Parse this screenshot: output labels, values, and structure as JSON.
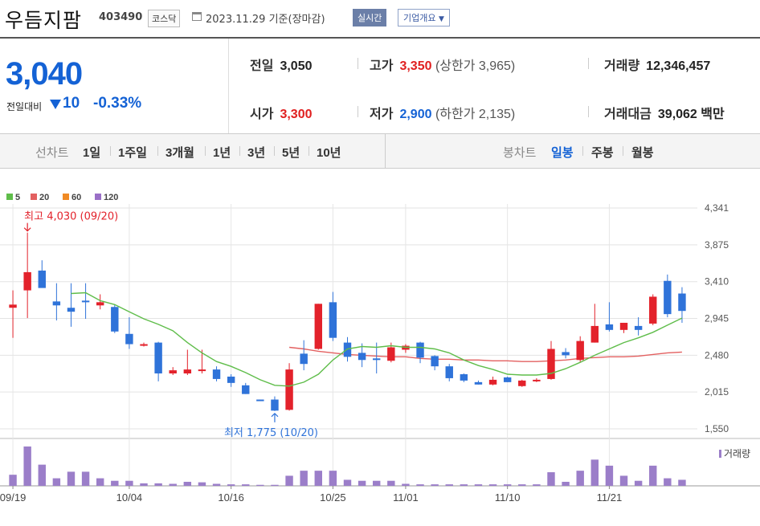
{
  "header": {
    "name": "우듬지팜",
    "code": "403490",
    "market": "코스닥",
    "date": "2023.11.29",
    "basis": "기준(장마감)",
    "realtime_label": "실시간",
    "overview_label": "기업개요"
  },
  "price": {
    "current": "3,040",
    "prev_label": "전일대비",
    "change": "10",
    "change_pct": "-0.33%",
    "direction": "down"
  },
  "stats": {
    "prev_close": {
      "label": "전일",
      "value": "3,050"
    },
    "high": {
      "label": "고가",
      "value": "3,350",
      "sub": "(상한가 3,965)"
    },
    "volume": {
      "label": "거래량",
      "value": "12,346,457"
    },
    "open": {
      "label": "시가",
      "value": "3,300"
    },
    "low": {
      "label": "저가",
      "value": "2,900",
      "sub": "(하한가 2,135)"
    },
    "amount": {
      "label": "거래대금",
      "value": "39,062",
      "unit": "백만"
    }
  },
  "period_tabs": {
    "label": "선차트",
    "items": [
      "1일",
      "1주일",
      "3개월",
      "1년",
      "3년",
      "5년",
      "10년"
    ]
  },
  "candle_tabs": {
    "label": "봉차트",
    "items": [
      "일봉",
      "주봉",
      "월봉"
    ],
    "active": "일봉"
  },
  "colors": {
    "up": "#e3222b",
    "down": "#2f73d9",
    "ma5": "#5fbd4a",
    "ma20": "#e36060",
    "ma60": "#f08a24",
    "ma120": "#9a6fc7",
    "accent": "#1462d5"
  },
  "chart_data": {
    "type": "candlestick",
    "legend": [
      "5",
      "20",
      "60",
      "120"
    ],
    "y_ticks": [
      "4,341",
      "3,875",
      "3,410",
      "2,945",
      "2,480",
      "2,015",
      "1,550"
    ],
    "ylim": [
      1550,
      4341
    ],
    "x_tick_labels": [
      {
        "index": 0,
        "label": "09/19"
      },
      {
        "index": 8,
        "label": "10/04"
      },
      {
        "index": 15,
        "label": "10/16"
      },
      {
        "index": 22,
        "label": "10/25"
      },
      {
        "index": 27,
        "label": "11/01"
      },
      {
        "index": 34,
        "label": "11/10"
      },
      {
        "index": 41,
        "label": "11/21"
      }
    ],
    "annotations": {
      "high": {
        "label": "최고 4,030 (09/20)",
        "index": 1,
        "value": 4030
      },
      "low": {
        "label": "최저 1,775 (10/20)",
        "index": 18,
        "value": 1775
      }
    },
    "volume_label": "거래량",
    "candles": [
      {
        "o": 3080,
        "h": 3300,
        "l": 2700,
        "c": 3120
      },
      {
        "o": 3300,
        "h": 4030,
        "l": 2950,
        "c": 3530
      },
      {
        "o": 3550,
        "h": 3680,
        "l": 3340,
        "c": 3330
      },
      {
        "o": 3160,
        "h": 3390,
        "l": 2920,
        "c": 3110
      },
      {
        "o": 3080,
        "h": 3390,
        "l": 2840,
        "c": 3030
      },
      {
        "o": 3170,
        "h": 3390,
        "l": 2940,
        "c": 3150
      },
      {
        "o": 3110,
        "h": 3250,
        "l": 3060,
        "c": 3150
      },
      {
        "o": 3090,
        "h": 3120,
        "l": 2760,
        "c": 2780
      },
      {
        "o": 2750,
        "h": 2960,
        "l": 2560,
        "c": 2620
      },
      {
        "o": 2610,
        "h": 2640,
        "l": 2590,
        "c": 2620
      },
      {
        "o": 2640,
        "h": 2650,
        "l": 2150,
        "c": 2250
      },
      {
        "o": 2250,
        "h": 2330,
        "l": 2230,
        "c": 2290
      },
      {
        "o": 2250,
        "h": 2550,
        "l": 2230,
        "c": 2300
      },
      {
        "o": 2300,
        "h": 2550,
        "l": 2250,
        "c": 2300
      },
      {
        "o": 2300,
        "h": 2340,
        "l": 2150,
        "c": 2180
      },
      {
        "o": 2210,
        "h": 2240,
        "l": 2080,
        "c": 2130
      },
      {
        "o": 2100,
        "h": 2130,
        "l": 1990,
        "c": 1990
      },
      {
        "o": 1920,
        "h": 1920,
        "l": 1900,
        "c": 1900
      },
      {
        "o": 1920,
        "h": 1960,
        "l": 1775,
        "c": 1780
      },
      {
        "o": 1790,
        "h": 2380,
        "l": 1780,
        "c": 2300
      },
      {
        "o": 2500,
        "h": 2670,
        "l": 2290,
        "c": 2370
      },
      {
        "o": 2560,
        "h": 3130,
        "l": 2550,
        "c": 3130
      },
      {
        "o": 3150,
        "h": 3280,
        "l": 2660,
        "c": 2700
      },
      {
        "o": 2640,
        "h": 2710,
        "l": 2400,
        "c": 2460
      },
      {
        "o": 2510,
        "h": 2630,
        "l": 2330,
        "c": 2420
      },
      {
        "o": 2440,
        "h": 2640,
        "l": 2250,
        "c": 2420
      },
      {
        "o": 2410,
        "h": 2640,
        "l": 2390,
        "c": 2580
      },
      {
        "o": 2550,
        "h": 2620,
        "l": 2510,
        "c": 2600
      },
      {
        "o": 2640,
        "h": 2650,
        "l": 2380,
        "c": 2450
      },
      {
        "o": 2470,
        "h": 2480,
        "l": 2290,
        "c": 2340
      },
      {
        "o": 2340,
        "h": 2370,
        "l": 2150,
        "c": 2190
      },
      {
        "o": 2240,
        "h": 2250,
        "l": 2140,
        "c": 2160
      },
      {
        "o": 2140,
        "h": 2160,
        "l": 2110,
        "c": 2110
      },
      {
        "o": 2110,
        "h": 2210,
        "l": 2100,
        "c": 2170
      },
      {
        "o": 2200,
        "h": 2210,
        "l": 2140,
        "c": 2140
      },
      {
        "o": 2090,
        "h": 2170,
        "l": 2080,
        "c": 2160
      },
      {
        "o": 2170,
        "h": 2190,
        "l": 2140,
        "c": 2170
      },
      {
        "o": 2180,
        "h": 2660,
        "l": 2170,
        "c": 2560
      },
      {
        "o": 2520,
        "h": 2570,
        "l": 2440,
        "c": 2480
      },
      {
        "o": 2420,
        "h": 2720,
        "l": 2390,
        "c": 2660
      },
      {
        "o": 2640,
        "h": 3130,
        "l": 2640,
        "c": 2850
      },
      {
        "o": 2870,
        "h": 3150,
        "l": 2780,
        "c": 2800
      },
      {
        "o": 2800,
        "h": 2890,
        "l": 2760,
        "c": 2890
      },
      {
        "o": 2850,
        "h": 2960,
        "l": 2730,
        "c": 2800
      },
      {
        "o": 2880,
        "h": 3250,
        "l": 2860,
        "c": 3220
      },
      {
        "o": 3420,
        "h": 3500,
        "l": 2960,
        "c": 3000
      },
      {
        "o": 3260,
        "h": 3340,
        "l": 2890,
        "c": 3040
      }
    ],
    "ma5": [
      null,
      null,
      null,
      null,
      3260,
      3270,
      3170,
      3120,
      3030,
      2940,
      2870,
      2790,
      2640,
      2510,
      2400,
      2340,
      2260,
      2170,
      2100,
      2090,
      2140,
      2240,
      2420,
      2560,
      2590,
      2580,
      2600,
      2580,
      2580,
      2560,
      2510,
      2420,
      2350,
      2300,
      2240,
      2230,
      2230,
      2250,
      2310,
      2390,
      2480,
      2560,
      2640,
      2700,
      2770,
      2860,
      2950
    ],
    "ma20": [
      null,
      null,
      null,
      null,
      null,
      null,
      null,
      null,
      null,
      null,
      null,
      null,
      null,
      null,
      null,
      null,
      null,
      null,
      null,
      2580,
      2560,
      2530,
      2510,
      2490,
      2480,
      2470,
      2460,
      2460,
      2440,
      2430,
      2430,
      2420,
      2420,
      2410,
      2410,
      2400,
      2400,
      2410,
      2420,
      2440,
      2450,
      2460,
      2460,
      2470,
      2490,
      2510,
      2520
    ],
    "volume": [
      22,
      78,
      42,
      15,
      28,
      28,
      15,
      10,
      10,
      5,
      5,
      4,
      8,
      7,
      4,
      3,
      3,
      2,
      2,
      20,
      30,
      30,
      30,
      12,
      10,
      10,
      10,
      4,
      3,
      3,
      3,
      3,
      3,
      3,
      3,
      3,
      3,
      27,
      8,
      30,
      52,
      40,
      20,
      10,
      40,
      15,
      12
    ]
  }
}
